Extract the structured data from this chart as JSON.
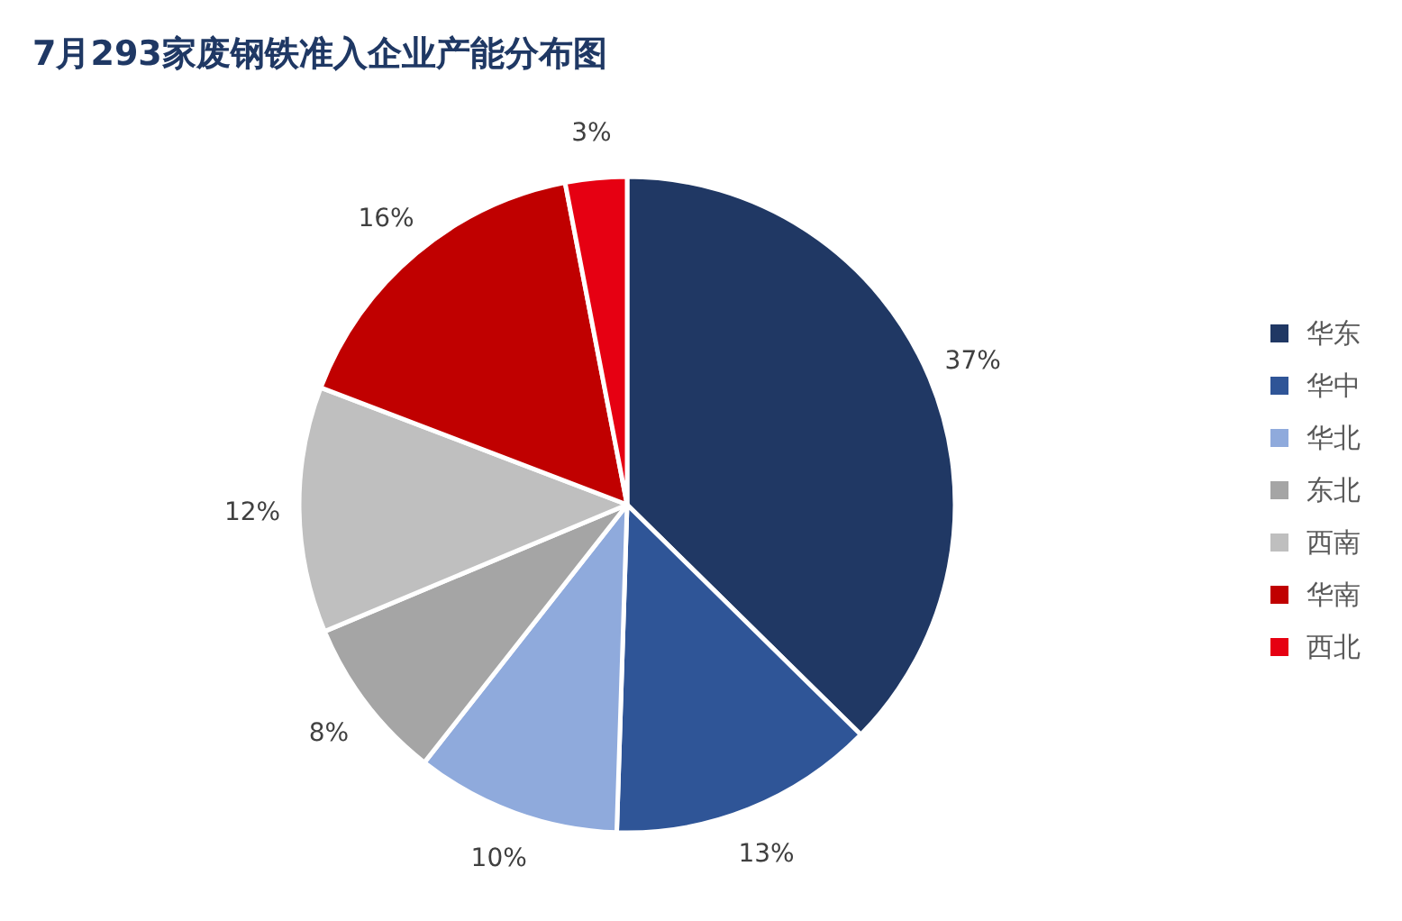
{
  "chart_data": {
    "type": "pie",
    "title": "7月293家废钢铁准入企业产能分布图",
    "categories": [
      "华东",
      "华中",
      "华北",
      "东北",
      "西南",
      "华南",
      "西北"
    ],
    "values": [
      37,
      13,
      10,
      8,
      12,
      16,
      3
    ],
    "colors": [
      "#203864",
      "#2f5597",
      "#8faadc",
      "#a5a5a5",
      "#bfbfbf",
      "#c00000",
      "#e60012"
    ],
    "value_labels": [
      "37%",
      "13%",
      "10%",
      "8%",
      "12%",
      "16%",
      "3%"
    ],
    "legend": "right"
  }
}
